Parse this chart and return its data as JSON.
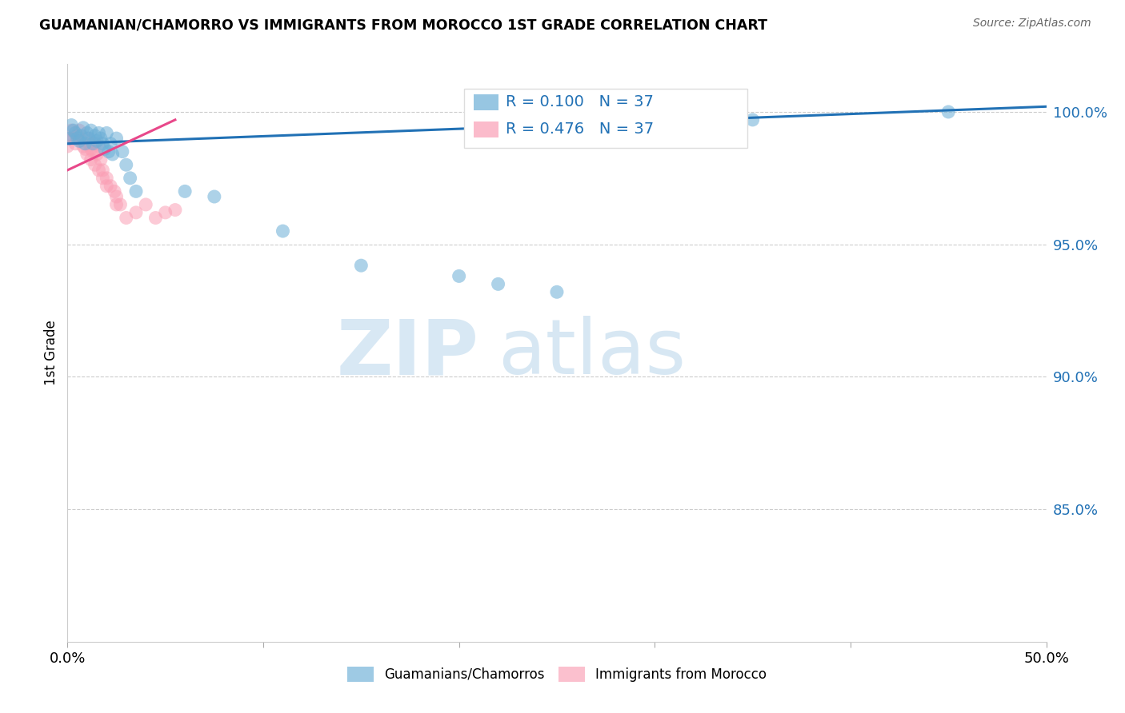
{
  "title": "GUAMANIAN/CHAMORRO VS IMMIGRANTS FROM MOROCCO 1ST GRADE CORRELATION CHART",
  "source": "Source: ZipAtlas.com",
  "ylabel": "1st Grade",
  "ylabel_right_labels": [
    "100.0%",
    "95.0%",
    "90.0%",
    "85.0%"
  ],
  "ylabel_right_values": [
    1.0,
    0.95,
    0.9,
    0.85
  ],
  "xlim": [
    0.0,
    0.5
  ],
  "ylim": [
    0.8,
    1.018
  ],
  "legend_blue_label": "Guamanians/Chamorros",
  "legend_pink_label": "Immigrants from Morocco",
  "R_blue": 0.1,
  "N_blue": 37,
  "R_pink": 0.476,
  "N_pink": 37,
  "blue_color": "#6baed6",
  "pink_color": "#fa9fb5",
  "trendline_blue": "#2171b5",
  "trendline_pink": "#e8488a",
  "watermark_zip": "ZIP",
  "watermark_atlas": "atlas",
  "blue_x": [
    0.001,
    0.002,
    0.003,
    0.004,
    0.005,
    0.006,
    0.007,
    0.008,
    0.009,
    0.01,
    0.011,
    0.012,
    0.013,
    0.014,
    0.015,
    0.016,
    0.017,
    0.018,
    0.019,
    0.02,
    0.021,
    0.022,
    0.023,
    0.025,
    0.028,
    0.03,
    0.032,
    0.035,
    0.06,
    0.075,
    0.11,
    0.15,
    0.2,
    0.22,
    0.25,
    0.35,
    0.45
  ],
  "blue_y": [
    0.99,
    0.995,
    0.993,
    0.992,
    0.99,
    0.989,
    0.991,
    0.994,
    0.988,
    0.992,
    0.99,
    0.993,
    0.988,
    0.991,
    0.989,
    0.992,
    0.99,
    0.988,
    0.986,
    0.992,
    0.985,
    0.988,
    0.984,
    0.99,
    0.985,
    0.98,
    0.975,
    0.97,
    0.97,
    0.968,
    0.955,
    0.942,
    0.938,
    0.935,
    0.932,
    0.997,
    1.0
  ],
  "pink_x": [
    0.0,
    0.001,
    0.002,
    0.003,
    0.004,
    0.005,
    0.006,
    0.007,
    0.008,
    0.009,
    0.01,
    0.011,
    0.012,
    0.013,
    0.014,
    0.015,
    0.016,
    0.017,
    0.018,
    0.02,
    0.022,
    0.024,
    0.025,
    0.027,
    0.03,
    0.035,
    0.04,
    0.045,
    0.05,
    0.055,
    0.01,
    0.012,
    0.014,
    0.016,
    0.018,
    0.02,
    0.025
  ],
  "pink_y": [
    0.987,
    0.99,
    0.993,
    0.99,
    0.988,
    0.991,
    0.993,
    0.989,
    0.987,
    0.986,
    0.99,
    0.988,
    0.986,
    0.985,
    0.988,
    0.984,
    0.987,
    0.982,
    0.978,
    0.975,
    0.972,
    0.97,
    0.968,
    0.965,
    0.96,
    0.962,
    0.965,
    0.96,
    0.962,
    0.963,
    0.984,
    0.982,
    0.98,
    0.978,
    0.975,
    0.972,
    0.965
  ]
}
